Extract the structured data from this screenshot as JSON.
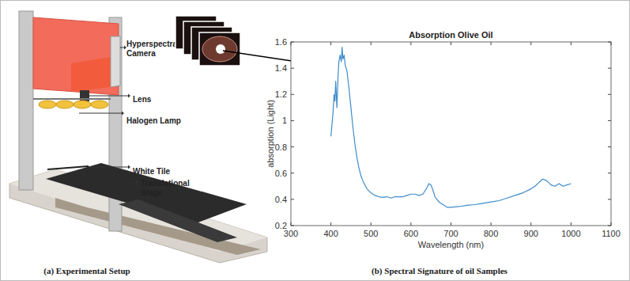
{
  "chart_data": {
    "type": "line",
    "title": "Absorption Olive Oil",
    "x_label": "Wavelength (nm)",
    "y_label": "absorption (Light)",
    "caption": "(b) Spectral Signature of oil Samples",
    "x": [
      400,
      405,
      408,
      410,
      412,
      415,
      418,
      420,
      423,
      426,
      428,
      430,
      433,
      436,
      440,
      445,
      450,
      455,
      460,
      465,
      470,
      475,
      480,
      490,
      500,
      510,
      520,
      530,
      540,
      550,
      560,
      570,
      580,
      590,
      600,
      610,
      620,
      630,
      640,
      645,
      650,
      655,
      660,
      670,
      680,
      690,
      700,
      720,
      740,
      760,
      780,
      800,
      820,
      840,
      860,
      880,
      900,
      910,
      920,
      930,
      940,
      950,
      960,
      970,
      980,
      990,
      1000
    ],
    "values": [
      0.88,
      1.05,
      1.2,
      1.15,
      1.3,
      1.1,
      1.35,
      1.45,
      1.5,
      1.45,
      1.56,
      1.47,
      1.5,
      1.42,
      1.38,
      1.25,
      1.1,
      0.95,
      0.82,
      0.72,
      0.64,
      0.58,
      0.54,
      0.48,
      0.45,
      0.43,
      0.42,
      0.415,
      0.42,
      0.41,
      0.42,
      0.42,
      0.42,
      0.43,
      0.44,
      0.44,
      0.43,
      0.44,
      0.49,
      0.52,
      0.51,
      0.47,
      0.42,
      0.38,
      0.36,
      0.34,
      0.34,
      0.345,
      0.355,
      0.36,
      0.37,
      0.38,
      0.39,
      0.41,
      0.43,
      0.45,
      0.48,
      0.5,
      0.53,
      0.555,
      0.54,
      0.51,
      0.5,
      0.52,
      0.5,
      0.51,
      0.52
    ],
    "color": "#3d8ccc",
    "xlim": [
      300,
      1100
    ],
    "xticks": [
      300,
      400,
      500,
      600,
      700,
      800,
      900,
      1000,
      1100
    ],
    "ylim": [
      0.2,
      1.6
    ],
    "yticks": [
      0.2,
      0.4,
      0.6,
      0.8,
      1,
      1.2,
      1.4,
      1.6
    ],
    "grid": false
  },
  "diagram": {
    "labels": [
      "Hyperspectral Camera",
      "Lens",
      "Halogen Lamp",
      "White Tile",
      "Translational Stage"
    ],
    "caption": "(a) Experimental Setup"
  }
}
